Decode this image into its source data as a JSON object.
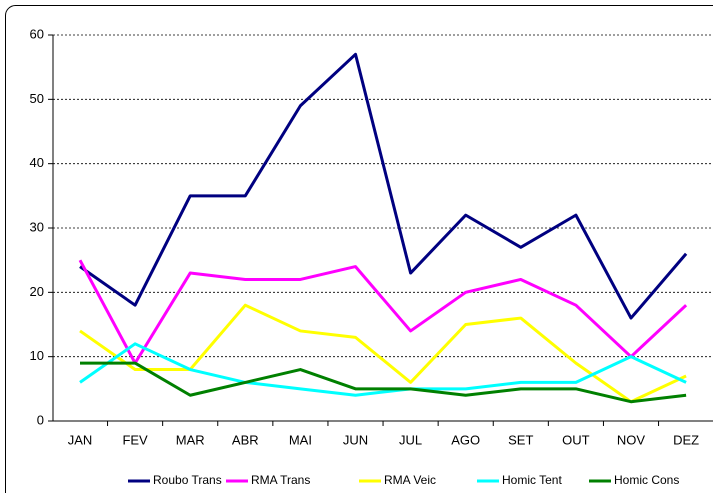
{
  "chart_data": {
    "type": "line",
    "categories": [
      "JAN",
      "FEV",
      "MAR",
      "ABR",
      "MAI",
      "JUN",
      "JUL",
      "AGO",
      "SET",
      "OUT",
      "NOV",
      "DEZ"
    ],
    "series": [
      {
        "name": "Roubo Trans",
        "color": "#000080",
        "values": [
          24,
          18,
          35,
          35,
          49,
          57,
          23,
          32,
          27,
          32,
          16,
          26
        ]
      },
      {
        "name": "RMA Trans",
        "color": "#ff00ff",
        "values": [
          25,
          9,
          23,
          22,
          22,
          24,
          14,
          20,
          22,
          18,
          10,
          18
        ]
      },
      {
        "name": "RMA Veic",
        "color": "#ffff00",
        "values": [
          14,
          8,
          8,
          18,
          14,
          13,
          6,
          15,
          16,
          9,
          3,
          7
        ]
      },
      {
        "name": "Homic Tent",
        "color": "#00ffff",
        "values": [
          6,
          12,
          8,
          6,
          5,
          4,
          5,
          5,
          6,
          6,
          10,
          6
        ]
      },
      {
        "name": "Homic Cons",
        "color": "#008000",
        "values": [
          9,
          9,
          4,
          6,
          8,
          5,
          5,
          4,
          5,
          5,
          3,
          4
        ]
      }
    ],
    "ylim": [
      0,
      60
    ],
    "yticks": [
      0,
      10,
      20,
      30,
      40,
      50,
      60
    ],
    "grid": true,
    "legend": "bottom"
  }
}
